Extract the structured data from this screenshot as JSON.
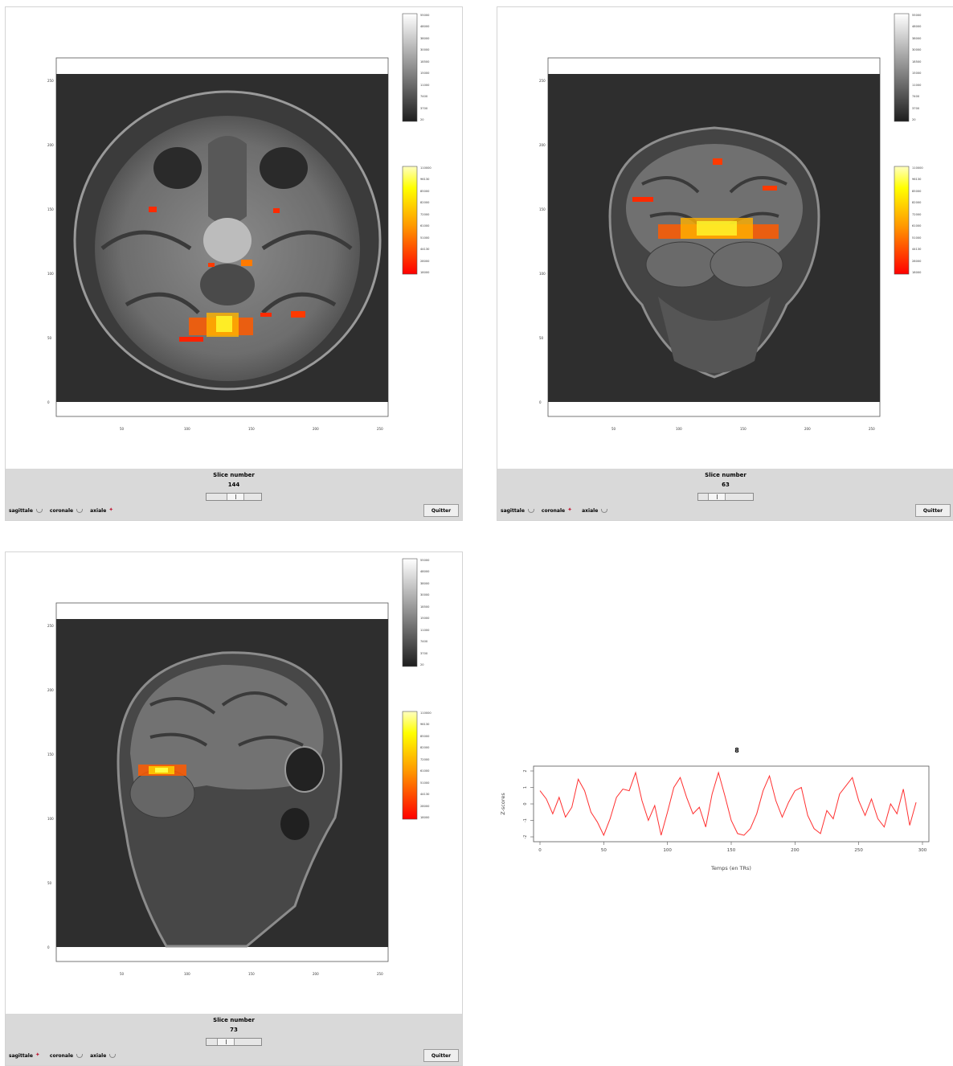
{
  "panels": [
    {
      "view": "axial",
      "axis_y_ticks": [
        "0",
        "50",
        "100",
        "150",
        "200",
        "250"
      ],
      "axis_x_ticks": [
        "50",
        "100",
        "150",
        "200",
        "250"
      ],
      "slice_label": "Slice number",
      "slice_value": "144",
      "slider_position": 0.55,
      "orientation_options": [
        {
          "label": "sagittale",
          "selected": false
        },
        {
          "label": "coronale",
          "selected": false
        },
        {
          "label": "axiale",
          "selected": true
        }
      ],
      "quit_label": "Quitter"
    },
    {
      "view": "coronal",
      "axis_y_ticks": [
        "0",
        "50",
        "100",
        "150",
        "200",
        "250"
      ],
      "axis_x_ticks": [
        "50",
        "100",
        "150",
        "200",
        "250"
      ],
      "slice_label": "Slice number",
      "slice_value": "63",
      "slider_position": 0.25,
      "orientation_options": [
        {
          "label": "sagittale",
          "selected": false
        },
        {
          "label": "coronale",
          "selected": true
        },
        {
          "label": "axiale",
          "selected": false
        }
      ],
      "quit_label": "Quitter"
    },
    {
      "view": "sagittal",
      "axis_y_ticks": [
        "0",
        "50",
        "100",
        "150",
        "200",
        "250"
      ],
      "axis_x_ticks": [
        "50",
        "100",
        "150",
        "200",
        "250"
      ],
      "slice_label": "Slice number",
      "slice_value": "73",
      "slider_position": 0.28,
      "orientation_options": [
        {
          "label": "sagittale",
          "selected": true
        },
        {
          "label": "coronale",
          "selected": false
        },
        {
          "label": "axiale",
          "selected": false
        }
      ],
      "quit_label": "Quitter"
    }
  ],
  "gray_colorbar_ticks": [
    "55000",
    "48000",
    "38000",
    "30000",
    "18500",
    "15000",
    "11000",
    "7400",
    "3700",
    "20"
  ],
  "heat_colorbar_ticks": [
    "110000",
    "96130",
    "85000",
    "82000",
    "72000",
    "61000",
    "51000",
    "44130",
    "28000",
    "18000"
  ],
  "colors": {
    "image_bg": "#2e2e2e",
    "controls_bg": "#d9d9d9",
    "selected_radio": "#c0203a",
    "timeseries_line": "#ff3030"
  },
  "chart_data": {
    "type": "line",
    "title": "8",
    "xlabel": "Temps (en TRs)",
    "ylabel": "Z-scores",
    "xlim": [
      0,
      300
    ],
    "ylim": [
      -2,
      2
    ],
    "x_ticks": [
      "0",
      "50",
      "100",
      "150",
      "200",
      "250",
      "300"
    ],
    "y_ticks": [
      "-2",
      "-1",
      "0",
      "1",
      "2"
    ],
    "series": [
      {
        "x": [
          0,
          5,
          10,
          15,
          20,
          25,
          30,
          35,
          40,
          45,
          50,
          55,
          60,
          65,
          70,
          75,
          80,
          85,
          90,
          95,
          100,
          105,
          110,
          115,
          120,
          125,
          130,
          135,
          140,
          145,
          150,
          155,
          160,
          165,
          170,
          175,
          180,
          185,
          190,
          195,
          200,
          205,
          210,
          215,
          220,
          225,
          230,
          235,
          240,
          245,
          250,
          255,
          260,
          265,
          270,
          275,
          280,
          285,
          290,
          295
        ],
        "y": [
          0.8,
          0.3,
          -0.6,
          0.4,
          -0.8,
          -0.2,
          1.5,
          0.8,
          -0.5,
          -1.1,
          -1.9,
          -0.9,
          0.4,
          0.9,
          0.8,
          1.9,
          0.2,
          -1.0,
          -0.1,
          -1.9,
          -0.5,
          1.0,
          1.6,
          0.4,
          -0.6,
          -0.2,
          -1.4,
          0.6,
          1.9,
          0.5,
          -1.0,
          -1.8,
          -1.9,
          -1.5,
          -0.6,
          0.8,
          1.7,
          0.2,
          -0.8,
          0.1,
          0.8,
          1.0,
          -0.7,
          -1.5,
          -1.8,
          -0.4,
          -0.9,
          0.6,
          1.1,
          1.6,
          0.2,
          -0.7,
          0.3,
          -0.9,
          -1.4,
          0.0,
          -0.6,
          0.9,
          -1.3,
          0.1
        ]
      }
    ]
  }
}
